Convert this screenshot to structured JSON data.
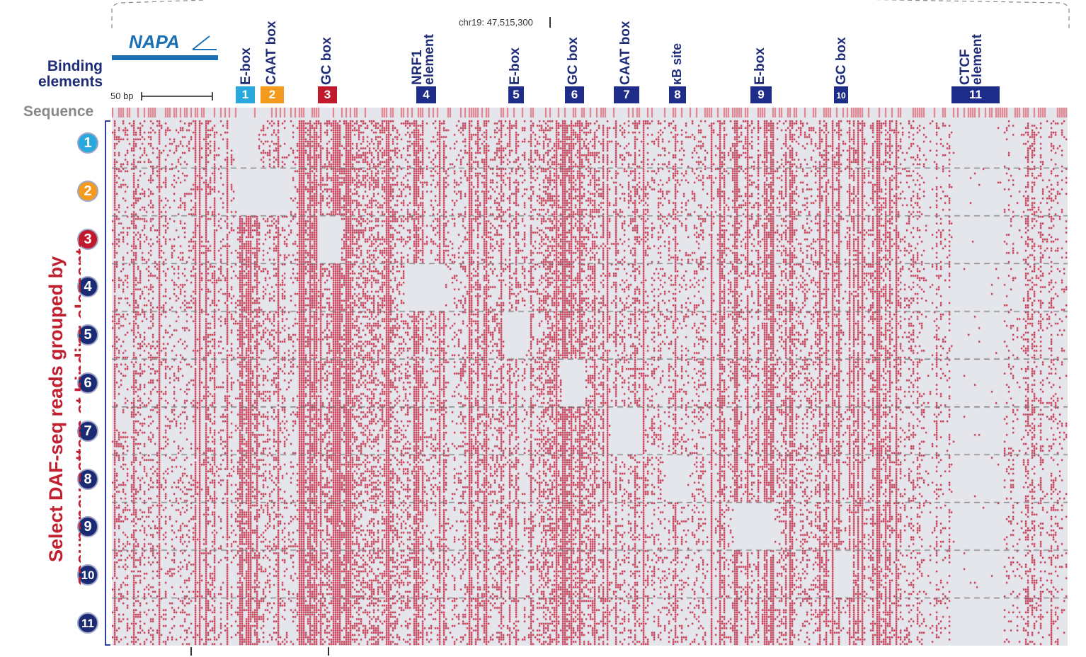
{
  "header": {
    "gene_name": "NAPA",
    "locus": "chr19: 47,515,300",
    "scale_label": "50 bp",
    "binding_elements_label_line1": "Binding",
    "binding_elements_label_line2": "elements",
    "sequence_label": "Sequence"
  },
  "side_title": {
    "line1": "Select DAF-seq reads grouped by",
    "line2": "occupancy pattern at binding elements"
  },
  "sites": [
    {
      "id": "1",
      "label": [
        "E-box"
      ],
      "color": "#29a8de"
    },
    {
      "id": "2",
      "label": [
        "CAAT box"
      ],
      "color": "#f39a1f"
    },
    {
      "id": "3",
      "label": [
        "GC box"
      ],
      "color": "#c0192b"
    },
    {
      "id": "4",
      "label": [
        "NRF1",
        "element"
      ],
      "color": "#1f2d8a"
    },
    {
      "id": "5",
      "label": [
        "E-box"
      ],
      "color": "#1f2d8a"
    },
    {
      "id": "6",
      "label": [
        "GC box"
      ],
      "color": "#1f2d8a"
    },
    {
      "id": "7",
      "label": [
        "CAAT box"
      ],
      "color": "#1f2d8a"
    },
    {
      "id": "8",
      "label": [
        "κB site"
      ],
      "color": "#1f2d8a"
    },
    {
      "id": "9",
      "label": [
        "E-box"
      ],
      "color": "#1f2d8a"
    },
    {
      "id": "10",
      "label": [
        "GC box"
      ],
      "color": "#1f2d8a"
    },
    {
      "id": "11",
      "label": [
        "CTCF",
        "element"
      ],
      "color": "#1f2d8a"
    }
  ],
  "groups": [
    "1",
    "2",
    "3",
    "4",
    "5",
    "6",
    "7",
    "8",
    "9",
    "10",
    "11"
  ],
  "colors": {
    "deaminated": "#c41e3a",
    "background": "#e4e6ec",
    "navy": "#1f2d78",
    "axis": "#2f3f9a"
  }
}
